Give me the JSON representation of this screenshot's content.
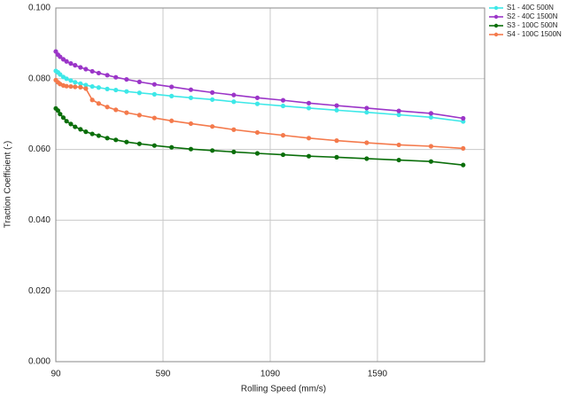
{
  "chart_data": {
    "type": "line",
    "x_label": "Rolling Speed (mm/s)",
    "y_label": "Traction Coefficient (-)",
    "x": [
      90,
      100,
      110,
      125,
      140,
      160,
      180,
      205,
      230,
      260,
      290,
      330,
      370,
      420,
      480,
      550,
      630,
      720,
      820,
      920,
      1030,
      1150,
      1270,
      1400,
      1540,
      1690,
      1840,
      1990
    ],
    "series": [
      {
        "name": "S1 - 40C 500N",
        "color": "#3de8e8",
        "values": [
          0.0822,
          0.0818,
          0.0812,
          0.0805,
          0.08,
          0.0795,
          0.079,
          0.0786,
          0.0782,
          0.0778,
          0.0775,
          0.0771,
          0.0768,
          0.0764,
          0.076,
          0.0756,
          0.0751,
          0.0746,
          0.0741,
          0.0735,
          0.0729,
          0.0723,
          0.0717,
          0.0711,
          0.0705,
          0.0698,
          0.0691,
          0.0679
        ]
      },
      {
        "name": "S2 - 40C 1500N",
        "color": "#9b35c8",
        "values": [
          0.0877,
          0.0868,
          0.0862,
          0.0855,
          0.0849,
          0.0843,
          0.0838,
          0.0832,
          0.0827,
          0.0821,
          0.0816,
          0.081,
          0.0804,
          0.0798,
          0.0791,
          0.0784,
          0.0777,
          0.0769,
          0.0761,
          0.0754,
          0.0746,
          0.0739,
          0.0731,
          0.0724,
          0.0717,
          0.0709,
          0.0702,
          0.0688
        ]
      },
      {
        "name": "S3 - 100C 500N",
        "color": "#0a6e0a",
        "values": [
          0.0716,
          0.071,
          0.07,
          0.069,
          0.068,
          0.0672,
          0.0664,
          0.0657,
          0.065,
          0.0644,
          0.0639,
          0.0632,
          0.0627,
          0.0621,
          0.0616,
          0.0611,
          0.0606,
          0.0601,
          0.0597,
          0.0593,
          0.0589,
          0.0585,
          0.0581,
          0.0578,
          0.0574,
          0.057,
          0.0566,
          0.0556
        ]
      },
      {
        "name": "S4 - 100C 1500N",
        "color": "#f47a4c",
        "values": [
          0.0796,
          0.079,
          0.0785,
          0.0781,
          0.0779,
          0.0778,
          0.0777,
          0.0776,
          0.0772,
          0.074,
          0.073,
          0.072,
          0.0712,
          0.0704,
          0.0697,
          0.0689,
          0.0681,
          0.0673,
          0.0665,
          0.0656,
          0.0648,
          0.064,
          0.0632,
          0.0625,
          0.0619,
          0.0613,
          0.0609,
          0.0603
        ]
      }
    ],
    "xlim": [
      90,
      2090
    ],
    "xticks": [
      90,
      590,
      1090,
      1590
    ],
    "ylim": [
      0,
      0.1
    ],
    "yticks": [
      {
        "value": 0,
        "label": "0.000"
      },
      {
        "value": 0.02,
        "label": "0.020"
      },
      {
        "value": 0.04,
        "label": "0.040"
      },
      {
        "value": 0.06,
        "label": "0.060"
      },
      {
        "value": 0.08,
        "label": "0.080"
      },
      {
        "value": 0.1,
        "label": "0.100"
      }
    ],
    "grid": true,
    "legend": "top-right"
  }
}
